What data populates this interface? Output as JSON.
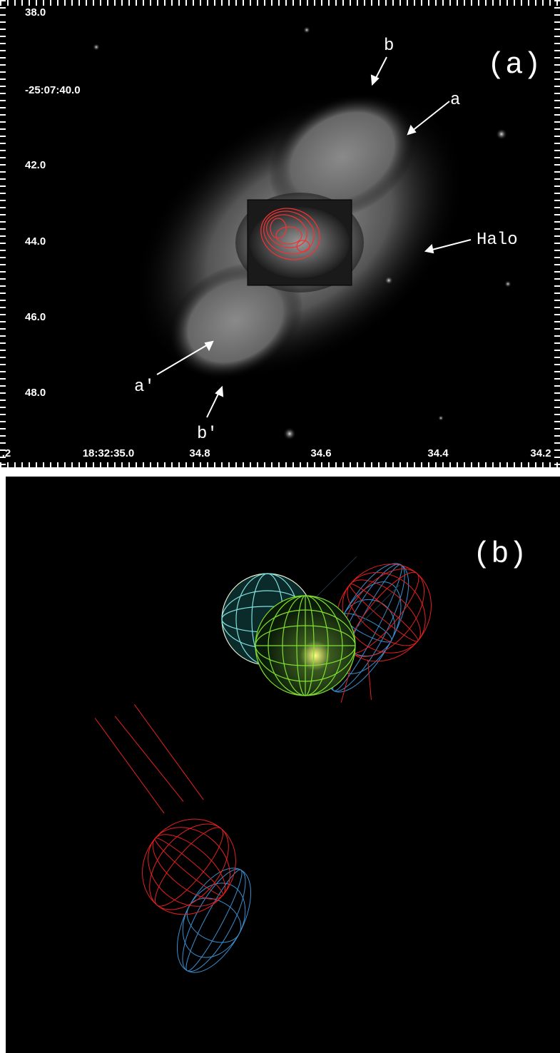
{
  "panel_a": {
    "label": "(a)",
    "y_labels": [
      "38.0",
      "-25:07:40.0",
      "42.0",
      "44.0",
      "46.0",
      "48.0"
    ],
    "x_labels": [
      ".2",
      "18:32:35.0",
      "34.8",
      "34.6",
      "34.4",
      "34.2"
    ],
    "annotations": [
      "b",
      "a",
      "Halo",
      "a'",
      "b'"
    ]
  },
  "panel_b": {
    "label": "(b)"
  }
}
